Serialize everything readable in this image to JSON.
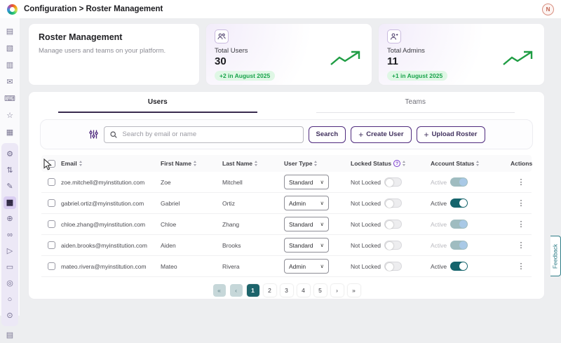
{
  "topbar": {
    "breadcrumb": "Configuration > Roster Management",
    "avatar_initial": "N"
  },
  "sidebar": {
    "top_icons": [
      {
        "name": "archive-icon",
        "glyph": "▤"
      },
      {
        "name": "id-card-icon",
        "glyph": "▧"
      },
      {
        "name": "notebook-icon",
        "glyph": "▥"
      },
      {
        "name": "message-icon",
        "glyph": "✉"
      },
      {
        "name": "devices-icon",
        "glyph": "⌨"
      },
      {
        "name": "favorites-icon",
        "glyph": "☆"
      },
      {
        "name": "image-icon",
        "glyph": "▦"
      }
    ],
    "panel_icons": [
      {
        "name": "settings-icon",
        "glyph": "⚙",
        "selected": false
      },
      {
        "name": "sliders-icon",
        "glyph": "⇅",
        "selected": false
      },
      {
        "name": "signature-icon",
        "glyph": "✎",
        "selected": false
      },
      {
        "name": "roster-icon",
        "glyph": "▩",
        "selected": true
      },
      {
        "name": "add-user-icon",
        "glyph": "⊕",
        "selected": false
      },
      {
        "name": "link-icon",
        "glyph": "∞",
        "selected": false
      },
      {
        "name": "send-icon",
        "glyph": "▷",
        "selected": false
      },
      {
        "name": "card-icon",
        "glyph": "▭",
        "selected": false
      },
      {
        "name": "search-audit-icon",
        "glyph": "◎",
        "selected": false
      },
      {
        "name": "user-icon",
        "glyph": "○",
        "selected": false
      },
      {
        "name": "user-settings-icon",
        "glyph": "⊙",
        "selected": false
      }
    ],
    "bottom_icons": [
      {
        "name": "window-icon",
        "glyph": "▤"
      }
    ]
  },
  "intro_card": {
    "title": "Roster Management",
    "subtitle": "Manage users and teams on your platform."
  },
  "stats": [
    {
      "label": "Total Users",
      "value": "30",
      "delta": "+2 in August 2025",
      "icon_glyph": "⚇"
    },
    {
      "label": "Total Admins",
      "value": "11",
      "delta": "+1 in August 2025",
      "icon_glyph": "⊕"
    }
  ],
  "tabs": [
    {
      "label": "Users",
      "active": true
    },
    {
      "label": "Teams",
      "active": false
    }
  ],
  "toolbar": {
    "search_placeholder": "Search by email or name",
    "search_button": "Search",
    "create_user_button": "Create User",
    "upload_roster_button": "Upload Roster",
    "plus_glyph": "+"
  },
  "table": {
    "headers": [
      {
        "label": "Email",
        "sortable": true,
        "help": false
      },
      {
        "label": "First Name",
        "sortable": true,
        "help": false
      },
      {
        "label": "Last Name",
        "sortable": true,
        "help": false
      },
      {
        "label": "User Type",
        "sortable": true,
        "help": false
      },
      {
        "label": "Locked Status",
        "sortable": true,
        "help": true
      },
      {
        "label": "Account Status",
        "sortable": true,
        "help": false
      },
      {
        "label": "Actions",
        "sortable": false,
        "help": false
      }
    ],
    "rows": [
      {
        "email": "zoe.mitchell@myinstitution.com",
        "first_name": "Zoe",
        "last_name": "Mitchell",
        "user_type": "Standard",
        "locked_label": "Not Locked",
        "locked": false,
        "account_label": "Active",
        "account_on": true,
        "account_muted": true
      },
      {
        "email": "gabriel.ortiz@myinstitution.com",
        "first_name": "Gabriel",
        "last_name": "Ortiz",
        "user_type": "Admin",
        "locked_label": "Not Locked",
        "locked": false,
        "account_label": "Active",
        "account_on": true,
        "account_muted": false
      },
      {
        "email": "chloe.zhang@myinstitution.com",
        "first_name": "Chloe",
        "last_name": "Zhang",
        "user_type": "Standard",
        "locked_label": "Not Locked",
        "locked": false,
        "account_label": "Active",
        "account_on": true,
        "account_muted": true
      },
      {
        "email": "aiden.brooks@myinstitution.com",
        "first_name": "Aiden",
        "last_name": "Brooks",
        "user_type": "Standard",
        "locked_label": "Not Locked",
        "locked": false,
        "account_label": "Active",
        "account_on": true,
        "account_muted": true
      },
      {
        "email": "mateo.rivera@myinstitution.com",
        "first_name": "Mateo",
        "last_name": "Rivera",
        "user_type": "Admin",
        "locked_label": "Not Locked",
        "locked": false,
        "account_label": "Active",
        "account_on": true,
        "account_muted": false
      }
    ]
  },
  "pagination": {
    "first": "«",
    "prev": "‹",
    "next": "›",
    "last": "»",
    "pages": [
      "1",
      "2",
      "3",
      "4",
      "5"
    ],
    "current": "1"
  },
  "feedback_label": "Feedback",
  "colors": {
    "accent_purple": "#4f2b7e",
    "tab_underline": "#3a2b4f",
    "teal_active": "#1d646b",
    "teal_muted_track": "#9fbcc0",
    "knob_blue": "#a9c9e6",
    "green_text": "#17a34a",
    "green_badge_bg": "#dff7e5",
    "lavender_panel": "#ece8f6"
  }
}
